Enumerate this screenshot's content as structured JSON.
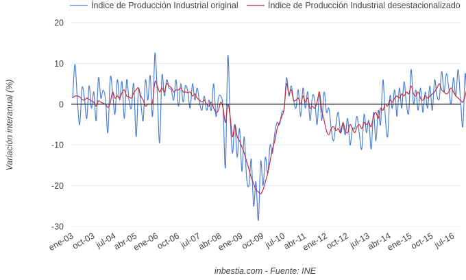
{
  "chart_data": {
    "type": "line",
    "title": "",
    "xlabel": "",
    "ylabel": "Variación interanual (%)",
    "ylim": [
      -30,
      20
    ],
    "yticks": [
      20,
      10,
      0,
      -10,
      -20,
      -30
    ],
    "grid": true,
    "legend_position": "top",
    "x_start": "ene-03",
    "x_frequency": "monthly",
    "x_tick_labels": [
      "ene-03",
      "oct-03",
      "jul-04",
      "abr-05",
      "ene-06",
      "oct-06",
      "jul-07",
      "abr-08",
      "ene-09",
      "oct-09",
      "jul-10",
      "abr-11",
      "ene-12",
      "oct-12",
      "jul-13",
      "abr-14",
      "ene-15",
      "oct-15",
      "jul-16"
    ],
    "x_tick_step_months": 9,
    "source": "inbestia.com - Fuente: INE",
    "series": [
      {
        "name": "Índice de Producción Industrial original",
        "color": "#4a7fd4",
        "values": [
          1.5,
          9.8,
          1.0,
          -5.0,
          4.0,
          1.5,
          -3.5,
          4.5,
          -1.0,
          3.0,
          -4.0,
          6.5,
          1.5,
          3.5,
          1.0,
          -7.0,
          6.5,
          3.0,
          -2.5,
          6.0,
          1.0,
          5.5,
          -3.5,
          6.0,
          1.0,
          -1.0,
          5.0,
          -8.0,
          3.5,
          0.5,
          -4.0,
          6.0,
          1.0,
          7.0,
          -3.0,
          12.5,
          3.0,
          -9.5,
          7.0,
          2.0,
          6.0,
          4.0,
          3.5,
          1.0,
          6.0,
          -0.5,
          5.0,
          0.5,
          4.5,
          3.0,
          -1.0,
          5.0,
          1.0,
          4.0,
          0.5,
          -1.5,
          2.0,
          -1.5,
          1.0,
          -1.5,
          5.0,
          -3.0,
          1.5,
          2.0,
          -1.0,
          -15.5,
          11.8,
          -3.0,
          -12.0,
          -5.0,
          -13.0,
          -6.0,
          -16.5,
          -8.0,
          -18.0,
          -20.0,
          -13.5,
          -25.0,
          -19.0,
          -28.5,
          -14.0,
          -20.0,
          -13.0,
          -17.0,
          -10.0,
          -12.0,
          -7.0,
          -4.5,
          -5.0,
          -2.0,
          -1.0,
          6.5,
          2.0,
          4.5,
          1.0,
          -1.0,
          3.5,
          -3.0,
          4.0,
          -1.0,
          3.0,
          -4.0,
          2.0,
          1.0,
          -5.0,
          2.5,
          -4.0,
          3.0,
          -2.0,
          -1.0,
          -6.0,
          -9.0,
          -5.0,
          -2.0,
          -7.0,
          -5.0,
          -7.5,
          -3.5,
          -10.0,
          -6.0,
          -6.0,
          -3.0,
          -7.5,
          -11.0,
          -2.5,
          -7.0,
          -4.0,
          -11.0,
          -2.0,
          -9.0,
          -1.5,
          -5.0,
          6.0,
          -3.0,
          -8.0,
          2.0,
          -1.0,
          3.5,
          -3.0,
          4.0,
          -1.0,
          5.5,
          0.0,
          -2.0,
          8.5,
          0.0,
          3.5,
          -1.5,
          4.0,
          -2.0,
          3.0,
          -1.0,
          4.5,
          -1.5,
          6.0,
          2.0,
          1.5,
          8.0,
          3.0,
          7.5,
          4.0,
          0.0,
          6.5,
          2.0,
          8.5,
          1.0,
          -5.5,
          7.5,
          -1.0,
          4.0
        ]
      },
      {
        "name": "Índice de Producción Industrial desestacionalizado",
        "color": "#c8283c",
        "values": [
          1.5,
          2.0,
          2.0,
          1.8,
          1.2,
          1.0,
          1.5,
          1.2,
          0.8,
          0.5,
          -0.5,
          0.8,
          0.5,
          0.2,
          0.0,
          -0.8,
          0.3,
          3.0,
          1.5,
          2.0,
          1.5,
          2.8,
          3.5,
          2.0,
          1.8,
          1.5,
          2.8,
          3.5,
          4.0,
          2.0,
          1.0,
          -0.5,
          0.0,
          0.0,
          0.5,
          5.5,
          4.5,
          3.0,
          4.0,
          3.0,
          5.0,
          4.5,
          4.0,
          3.0,
          3.5,
          3.5,
          4.0,
          3.0,
          3.0,
          2.8,
          3.0,
          2.0,
          2.5,
          1.5,
          1.0,
          0.5,
          1.0,
          0.0,
          -0.5,
          0.5,
          -1.0,
          -2.0,
          -1.5,
          0.5,
          -1.0,
          -4.5,
          0.0,
          -3.0,
          -8.0,
          -5.0,
          -8.0,
          -9.0,
          -10.5,
          -12.0,
          -14.0,
          -16.0,
          -18.0,
          -19.5,
          -21.0,
          -21.5,
          -22.0,
          -21.0,
          -19.0,
          -17.0,
          -14.0,
          -11.0,
          -9.0,
          -6.0,
          -4.5,
          -3.0,
          -1.0,
          5.0,
          2.5,
          3.5,
          1.0,
          1.0,
          1.5,
          0.0,
          2.0,
          0.5,
          1.5,
          -1.0,
          -0.5,
          -1.0,
          0.5,
          3.0,
          -1.5,
          -4.0,
          -6.5,
          -7.5,
          -6.0,
          -5.5,
          -6.5,
          -6.0,
          -7.0,
          -4.5,
          -6.5,
          -7.0,
          -5.0,
          -6.0,
          -7.0,
          -5.5,
          -5.0,
          -6.0,
          -4.5,
          -5.0,
          -4.5,
          -5.5,
          -3.0,
          -2.0,
          -3.5,
          -1.0,
          -1.5,
          0.0,
          -0.5,
          1.0,
          0.5,
          1.5,
          2.0,
          1.5,
          2.5,
          2.0,
          3.0,
          2.5,
          4.5,
          2.5,
          2.0,
          3.0,
          1.5,
          1.0,
          2.0,
          1.5,
          2.0,
          2.5,
          3.0,
          4.0,
          5.0,
          3.5,
          3.0,
          2.5,
          3.0,
          4.0,
          3.0,
          2.0,
          1.5,
          1.0,
          0.5,
          2.0,
          4.0,
          0.0,
          2.0,
          3.5
        ]
      }
    ]
  }
}
